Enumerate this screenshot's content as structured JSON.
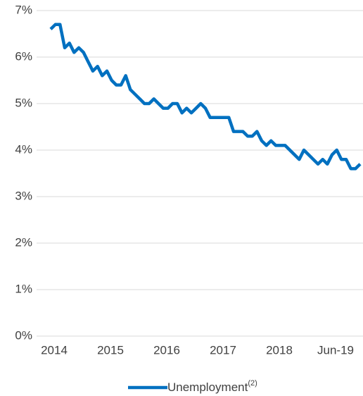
{
  "chart_data": {
    "type": "line",
    "categories": [
      "2014",
      null,
      null,
      null,
      null,
      null,
      null,
      null,
      null,
      null,
      null,
      null,
      "2015",
      null,
      null,
      null,
      null,
      null,
      null,
      null,
      null,
      null,
      null,
      null,
      "2016",
      null,
      null,
      null,
      null,
      null,
      null,
      null,
      null,
      null,
      null,
      null,
      "2017",
      null,
      null,
      null,
      null,
      null,
      null,
      null,
      null,
      null,
      null,
      null,
      "2018",
      null,
      null,
      null,
      null,
      null,
      null,
      null,
      null,
      null,
      null,
      null,
      "Jun-19",
      null,
      null,
      null,
      null,
      null,
      null
    ],
    "series": [
      {
        "name": "Unemployment",
        "name_note": "(2)",
        "color": "#0070c0",
        "values": [
          6.6,
          6.7,
          6.7,
          6.2,
          6.3,
          6.1,
          6.2,
          6.1,
          5.9,
          5.7,
          5.8,
          5.6,
          5.7,
          5.5,
          5.4,
          5.4,
          5.6,
          5.3,
          5.2,
          5.1,
          5.0,
          5.0,
          5.1,
          5.0,
          4.9,
          4.9,
          5.0,
          5.0,
          4.8,
          4.9,
          4.8,
          4.9,
          5.0,
          4.9,
          4.7,
          4.7,
          4.7,
          4.7,
          4.7,
          4.4,
          4.4,
          4.4,
          4.3,
          4.3,
          4.4,
          4.2,
          4.1,
          4.2,
          4.1,
          4.1,
          4.1,
          4.0,
          3.9,
          3.8,
          4.0,
          3.9,
          3.8,
          3.7,
          3.8,
          3.7,
          3.9,
          4.0,
          3.8,
          3.8,
          3.6,
          3.6,
          3.7
        ]
      }
    ],
    "ylim": [
      0,
      7
    ],
    "yticks": [
      {
        "value": 0,
        "label": "0%"
      },
      {
        "value": 1,
        "label": "1%"
      },
      {
        "value": 2,
        "label": "2%"
      },
      {
        "value": 3,
        "label": "3%"
      },
      {
        "value": 4,
        "label": "4%"
      },
      {
        "value": 5,
        "label": "5%"
      },
      {
        "value": 6,
        "label": "6%"
      },
      {
        "value": 7,
        "label": "7%"
      }
    ],
    "grid": true,
    "legend": "bottom"
  }
}
